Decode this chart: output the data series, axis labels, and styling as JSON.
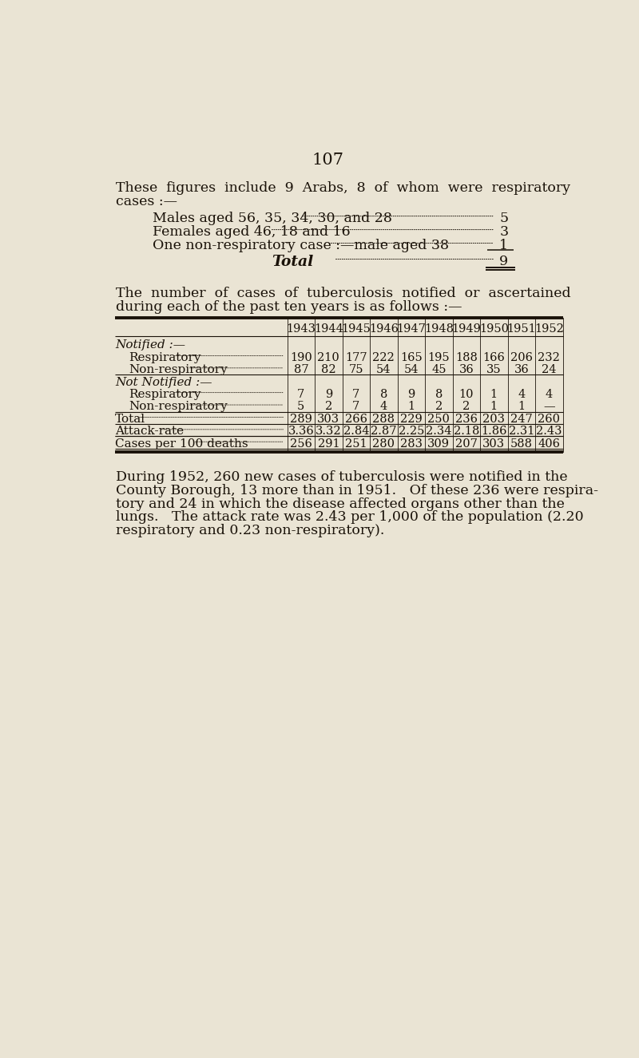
{
  "bg_color": "#EAE4D4",
  "page_number": "107",
  "intro_line1": "These  figures  include  9  Arabs,  8  of  whom  were  respiratory",
  "intro_line2": "cases :—",
  "list_items": [
    {
      "label": "Males aged 56, 35, 34, 30, and 28",
      "value": "5"
    },
    {
      "label": "Females aged 46, 18 and 16",
      "value": "3"
    },
    {
      "label": "One non-respiratory case :—male aged 38",
      "value": "1"
    }
  ],
  "total_label": "Total",
  "total_value": "9",
  "para2_line1": "The  number  of  cases  of  tuberculosis  notified  or  ascertained",
  "para2_line2": "during each of the past ten years is as follows :—",
  "years": [
    "1943",
    "1944",
    "1945",
    "1946",
    "1947",
    "1948",
    "1949",
    "1950",
    "1951",
    "1952"
  ],
  "table_rows": [
    {
      "label": "Notified :—",
      "indent": 0,
      "header": true,
      "values": null
    },
    {
      "label": "Respiratory",
      "indent": 1,
      "header": false,
      "values": [
        "190",
        "210",
        "177",
        "222",
        "165",
        "195",
        "188",
        "166",
        "206",
        "232"
      ]
    },
    {
      "label": "Non-respiratory",
      "indent": 1,
      "header": false,
      "values": [
        "87",
        "82",
        "75",
        "54",
        "54",
        "45",
        "36",
        "35",
        "36",
        "24"
      ]
    },
    {
      "label": "Not Notified :—",
      "indent": 0,
      "header": true,
      "values": null
    },
    {
      "label": "Respiratory",
      "indent": 1,
      "header": false,
      "values": [
        "7",
        "9",
        "7",
        "8",
        "9",
        "8",
        "10",
        "1",
        "4",
        "4"
      ]
    },
    {
      "label": "Non-respiratory",
      "indent": 1,
      "header": false,
      "values": [
        "5",
        "2",
        "7",
        "4",
        "1",
        "2",
        "2",
        "1",
        "1",
        "—"
      ]
    },
    {
      "label": "Total",
      "indent": 0,
      "header": false,
      "separator_before": true,
      "values": [
        "289",
        "303",
        "266",
        "288",
        "229",
        "250",
        "236",
        "203",
        "247",
        "260"
      ]
    },
    {
      "label": "Attack-rate",
      "indent": 0,
      "header": false,
      "separator_before": true,
      "values": [
        "3.36",
        "3.32",
        "2.84",
        "2.87",
        "2.25",
        "2.34",
        "2.18",
        "1.86",
        "2.31",
        "2.43"
      ]
    },
    {
      "label": "Cases per 100 deaths",
      "indent": 0,
      "header": false,
      "separator_before": true,
      "values": [
        "256",
        "291",
        "251",
        "280",
        "283",
        "309",
        "207",
        "303",
        "588",
        "406"
      ]
    }
  ],
  "para3_lines": [
    "During 1952, 260 new cases of tuberculosis were notified in the",
    "County Borough, 13 more than in 1951.   Of these 236 were respira-",
    "tory and 24 in which the disease affected organs other than the",
    "lungs.   The attack rate was 2.43 per 1,000 of the population (2.20",
    "respiratory and 0.23 non-respiratory)."
  ],
  "text_color": "#1a1209",
  "line_color": "#1a1209"
}
